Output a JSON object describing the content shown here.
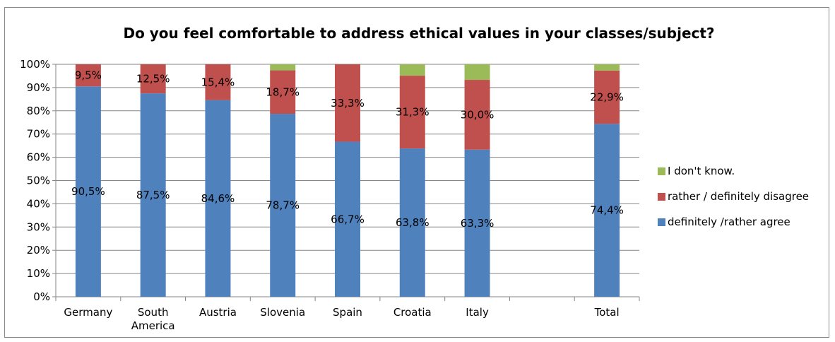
{
  "chart_data": {
    "type": "bar",
    "stacked": true,
    "title": "Do you feel comfortable to address ethical values in your classes/subject?",
    "categories": [
      [
        "Germany"
      ],
      [
        "South",
        "America"
      ],
      [
        "Austria"
      ],
      [
        "Slovenia"
      ],
      [
        "Spain"
      ],
      [
        "Croatia"
      ],
      [
        "Italy"
      ],
      [
        ""
      ],
      [
        "Total"
      ]
    ],
    "y_ticks": [
      "0%",
      "10%",
      "20%",
      "30%",
      "40%",
      "50%",
      "60%",
      "70%",
      "80%",
      "90%",
      "100%"
    ],
    "ylim": [
      0,
      100
    ],
    "grid": true,
    "legend_position": "right",
    "series": [
      {
        "name": "definitely /rather agree",
        "color": "#4f81bd",
        "values": [
          90.5,
          87.5,
          84.6,
          78.7,
          66.7,
          63.8,
          63.3,
          null,
          74.4
        ],
        "labels": [
          "90,5%",
          "87,5%",
          "84,6%",
          "78,7%",
          "66,7%",
          "63,8%",
          "63,3%",
          "",
          "74,4%"
        ]
      },
      {
        "name": "rather / definitely disagree",
        "color": "#c0504d",
        "values": [
          9.5,
          12.5,
          15.4,
          18.7,
          33.3,
          31.3,
          30.0,
          null,
          22.9
        ],
        "labels": [
          "9,5%",
          "12,5%",
          "15,4%",
          "18,7%",
          "33,3%",
          "31,3%",
          "30,0%",
          "",
          "22,9%"
        ]
      },
      {
        "name": "I don't know.",
        "color": "#9bbb59",
        "values": [
          0,
          0,
          0,
          2.6,
          0,
          4.9,
          6.7,
          null,
          2.7
        ],
        "labels": [
          "",
          "",
          "",
          "",
          "",
          "",
          "",
          "",
          ""
        ]
      }
    ],
    "legend_order": [
      2,
      1,
      0
    ]
  }
}
